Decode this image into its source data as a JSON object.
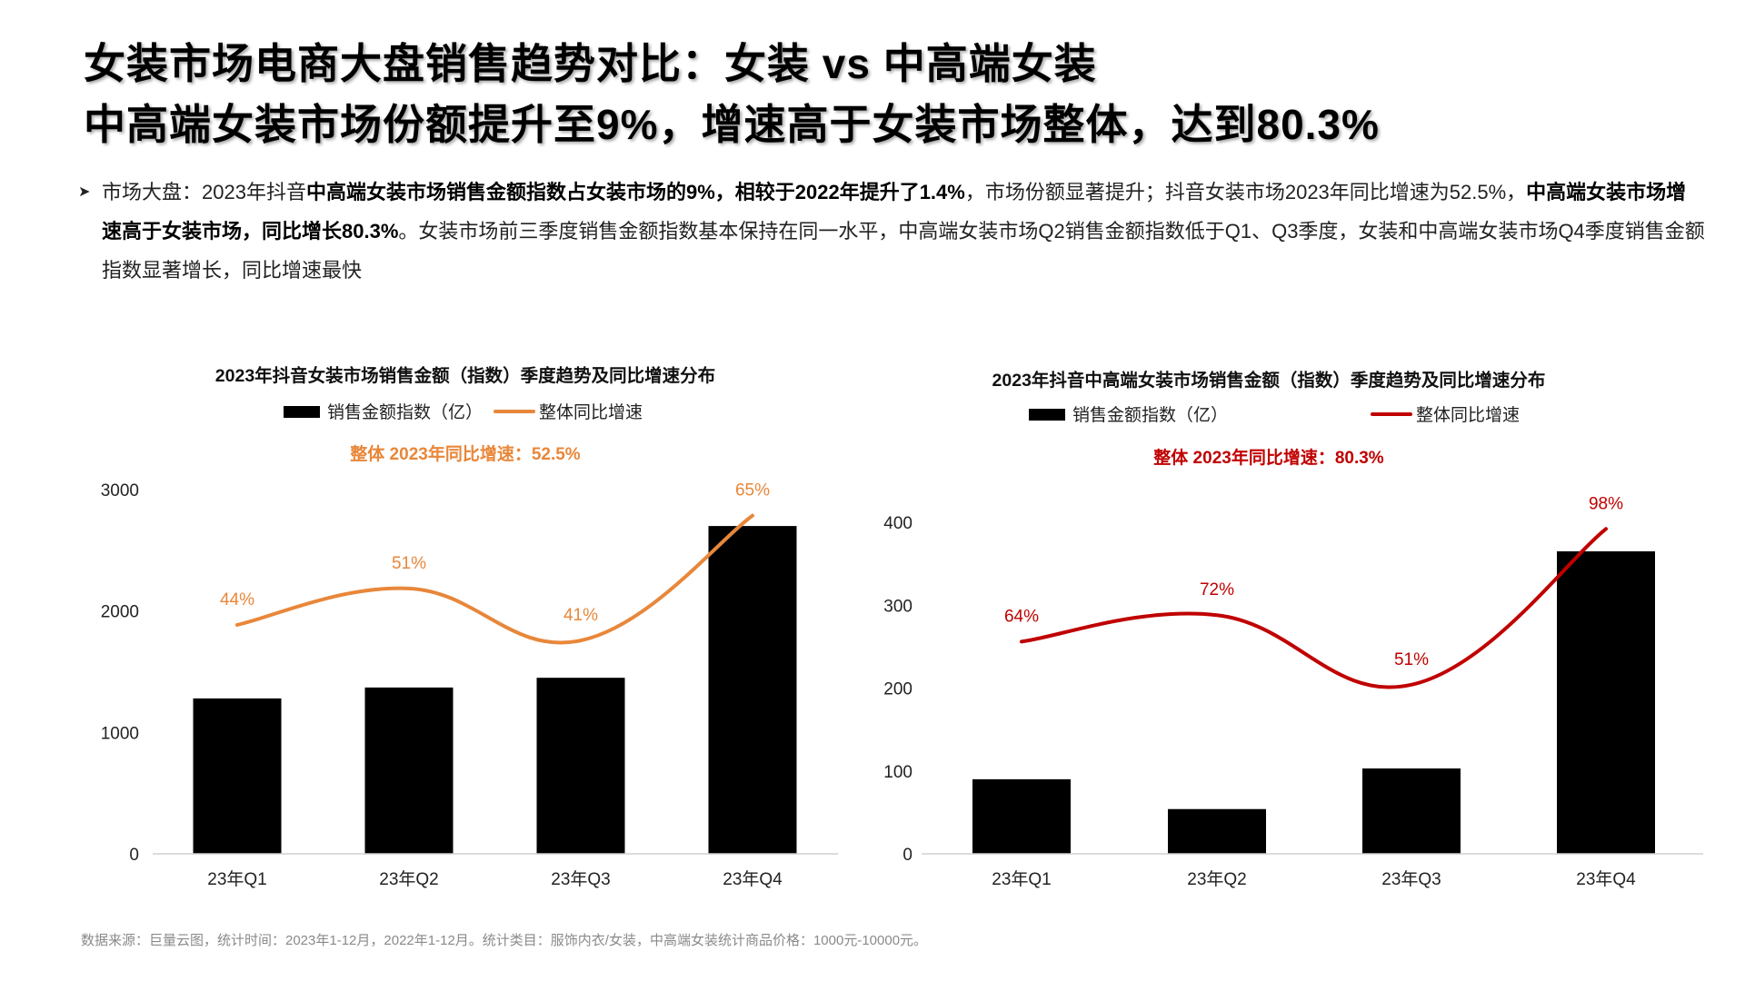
{
  "header": {
    "title_line1": "女装市场电商大盘销售趋势对比：女装 vs 中高端女装",
    "title_line2": "中高端女装市场份额提升至9%，增速高于女装市场整体，达到80.3%"
  },
  "summary": {
    "bullet_icon": "arrowhead-bullet-icon",
    "segments": [
      {
        "text": "市场大盘：2023年抖音",
        "bold": false
      },
      {
        "text": "中高端女装市场销售金额指数占女装市场的9%，相较于2022年提升了1.4%",
        "bold": true
      },
      {
        "text": "，市场份额显著提升；抖音女装市场2023年同比增速为52.5%，",
        "bold": false
      },
      {
        "text": "中高端女装市场增速高于女装市场，同比增长80.3%",
        "bold": true
      },
      {
        "text": "。女装市场前三季度销售金额指数基本保持在同一水平，中高端女装市场Q2销售金额指数低于Q1、Q3季度，女装和中高端女装市场Q4季度销售金额指数显著增长，同比增速最快",
        "bold": false
      }
    ]
  },
  "footer": "数据来源：巨量云图，统计时间：2023年1-12月，2022年1-12月。统计类目：服饰内衣/女装，中高端女装统计商品价格：1000元-10000元。",
  "chart_data": [
    {
      "type": "bar",
      "title": "2023年抖音女装市场销售金额（指数）季度趋势及同比增速分布",
      "subtitle": "整体  2023年同比增速：52.5%",
      "categories": [
        "23年Q1",
        "23年Q2",
        "23年Q3",
        "23年Q4"
      ],
      "series": [
        {
          "name": "销售金额指数（亿）",
          "type": "bar",
          "values": [
            1280,
            1370,
            1450,
            2700
          ],
          "color": "#000000"
        },
        {
          "name": "整体同比增速",
          "type": "line",
          "smooth": true,
          "axis": "secondary",
          "values": [
            44,
            51,
            41,
            65
          ],
          "labels": [
            "44%",
            "51%",
            "41%",
            "65%"
          ],
          "color": "#E8873A"
        }
      ],
      "ylim": [
        0,
        3000
      ],
      "yticks": [
        "0",
        "1000",
        "2000",
        "3000"
      ],
      "y2lim": [
        0,
        70
      ],
      "grid": false,
      "legend": "top"
    },
    {
      "type": "bar",
      "title": "2023年抖音中高端女装市场销售金额（指数）季度趋势及同比增速分布",
      "subtitle": "整体  2023年同比增速：80.3%",
      "categories": [
        "23年Q1",
        "23年Q2",
        "23年Q3",
        "23年Q4"
      ],
      "series": [
        {
          "name": "销售金额指数（亿）",
          "type": "bar",
          "values": [
            90,
            54,
            103,
            365
          ],
          "color": "#000000"
        },
        {
          "name": "整体同比增速",
          "type": "line",
          "smooth": true,
          "axis": "secondary",
          "values": [
            64,
            72,
            51,
            98
          ],
          "labels": [
            "64%",
            "72%",
            "51%",
            "98%"
          ],
          "color": "#C00000"
        }
      ],
      "ylim": [
        0,
        400
      ],
      "yticks": [
        "0",
        "100",
        "200",
        "300",
        "400"
      ],
      "y2lim": [
        0,
        100
      ],
      "grid": false,
      "legend": "top"
    }
  ]
}
